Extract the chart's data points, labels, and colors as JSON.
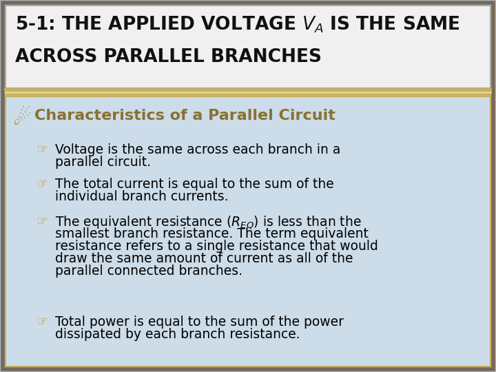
{
  "title_line1": "5-1: THE APPLIED VOLTAGE $V_A$ IS THE SAME",
  "title_line2": "ACROSS PARALLEL BRANCHES",
  "title_bg": "#f0f0f0",
  "title_border_outer": "#8a7060",
  "title_border_inner": "#c8b870",
  "title_text_color": "#111111",
  "body_bg": "#ccdce8",
  "section_header": "Characteristics of a Parallel Circuit",
  "section_header_color": "#8a7030",
  "section_bullet": "⯌",
  "bullet_color_header": "#b09020",
  "bullet_color_item": "#c0a050",
  "bg_color": "#a0b8c8",
  "title_fontsize": 19,
  "header_fontsize": 16,
  "bullet_fontsize": 13.5,
  "outer_border_color": "#7a6858",
  "separator_color1": "#c8b060",
  "separator_color2": "#e8d880",
  "inner_box_border": "#c8b060"
}
